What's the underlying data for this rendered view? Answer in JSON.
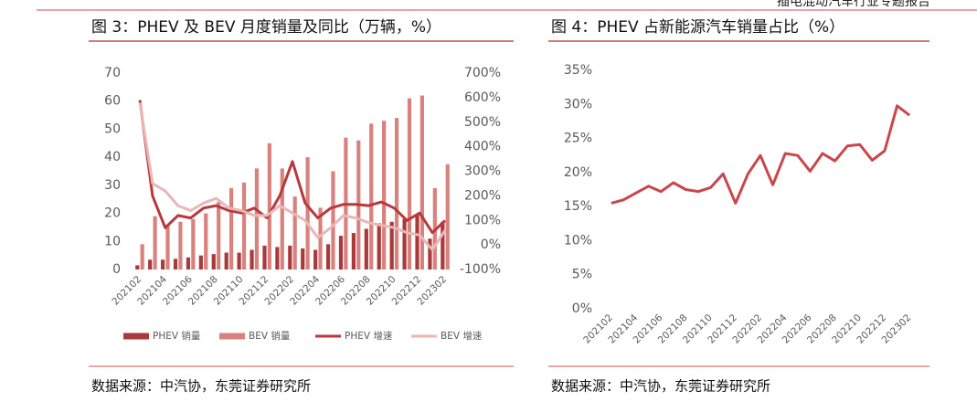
{
  "report_title": "插电混动汽车行业专题报告",
  "chart_data": [
    {
      "type": "combo",
      "title": "图 3：PHEV 及 BEV 月度销量及同比（万辆，%）",
      "source": "数据来源：中汽协，东莞证券研究所",
      "categories": [
        "202102",
        null,
        "202104",
        null,
        "202106",
        null,
        "202108",
        null,
        "202110",
        null,
        "202112",
        null,
        "202202",
        null,
        "202204",
        null,
        "202206",
        null,
        "202208",
        null,
        "202210",
        null,
        "202212",
        null,
        "202302"
      ],
      "ylim": [
        0,
        70
      ],
      "yticks": [
        0,
        10,
        20,
        30,
        40,
        50,
        60,
        70
      ],
      "y2lim": [
        -100,
        700
      ],
      "y2ticks": [
        {
          "value": -100,
          "label": "-100%"
        },
        {
          "value": 0,
          "label": "0%"
        },
        {
          "value": 100,
          "label": "100%"
        },
        {
          "value": 200,
          "label": "200%"
        },
        {
          "value": 300,
          "label": "300%"
        },
        {
          "value": 400,
          "label": "400%"
        },
        {
          "value": 500,
          "label": "500%"
        },
        {
          "value": 600,
          "label": "600%"
        },
        {
          "value": 700,
          "label": "700%"
        }
      ],
      "grid": false,
      "legend": "bottom",
      "series": [
        {
          "name": "PHEV 销量",
          "kind": "bar",
          "color": "#a83a3c",
          "values": [
            1.5,
            3.5,
            3.5,
            3.8,
            4.3,
            5,
            5.5,
            6,
            6,
            7,
            8.5,
            8,
            8.5,
            7.5,
            7,
            9,
            12,
            13,
            14.5,
            16.5,
            17,
            18,
            19.5,
            11,
            17
          ]
        },
        {
          "name": "BEV 销量",
          "kind": "bar",
          "color": "#d9817f",
          "values": [
            9,
            19,
            16,
            17,
            18,
            20,
            24,
            29,
            31,
            36,
            45,
            36,
            26,
            40,
            22,
            35,
            47,
            46,
            52,
            53,
            54,
            61,
            62,
            29,
            37.5
          ]
        },
        {
          "name": "PHEV 增速",
          "kind": "line",
          "axis": "y2",
          "color": "#b8393d",
          "values": [
            590,
            200,
            70,
            120,
            110,
            150,
            160,
            140,
            130,
            150,
            110,
            200,
            340,
            170,
            110,
            150,
            165,
            165,
            160,
            175,
            150,
            100,
            130,
            50,
            100
          ]
        },
        {
          "name": "BEV 增速",
          "kind": "line",
          "axis": "y2",
          "color": "#e9b7b5",
          "values": [
            580,
            250,
            220,
            160,
            140,
            170,
            190,
            150,
            140,
            120,
            120,
            160,
            130,
            100,
            30,
            70,
            120,
            110,
            90,
            80,
            70,
            50,
            40,
            -20,
            60
          ]
        }
      ]
    },
    {
      "type": "line",
      "title": "图 4：PHEV 占新能源汽车销量占比（%）",
      "source": "数据来源：中汽协，东莞证券研究所",
      "categories": [
        "202102",
        null,
        "202104",
        null,
        "202106",
        null,
        "202108",
        null,
        "202110",
        null,
        "202112",
        null,
        "202202",
        null,
        "202204",
        null,
        "202206",
        null,
        "202208",
        null,
        "202210",
        null,
        "202212",
        null,
        "202302"
      ],
      "ylim": [
        0,
        35
      ],
      "yticks": [
        {
          "value": 0,
          "label": "0%"
        },
        {
          "value": 5,
          "label": "5%"
        },
        {
          "value": 10,
          "label": "10%"
        },
        {
          "value": 15,
          "label": "15%"
        },
        {
          "value": 20,
          "label": "20%"
        },
        {
          "value": 25,
          "label": "25%"
        },
        {
          "value": 30,
          "label": "30%"
        },
        {
          "value": 35,
          "label": "35%"
        }
      ],
      "grid": false,
      "color": "#c9474c",
      "values": [
        15.5,
        16,
        17,
        18,
        17.2,
        18.5,
        17.5,
        17.2,
        17.8,
        19.8,
        15.5,
        19.8,
        22.5,
        18.2,
        22.8,
        22.5,
        20.2,
        22.8,
        21.7,
        23.9,
        24.1,
        21.8,
        23.2,
        29.8,
        28.4
      ]
    }
  ]
}
